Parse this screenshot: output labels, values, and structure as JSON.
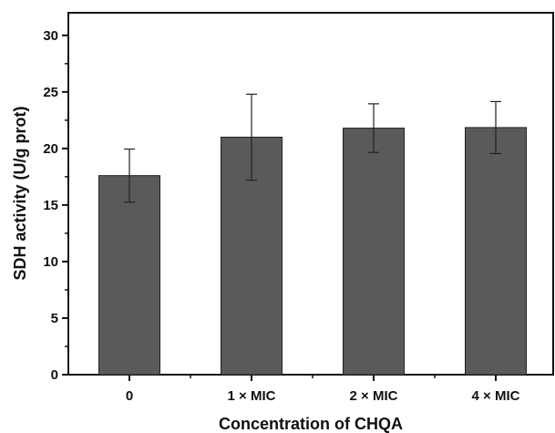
{
  "chart_data": {
    "type": "bar",
    "title": "",
    "xlabel": "Concentration of CHQA",
    "ylabel": "SDH activity (U/g prot)",
    "categories": [
      "0",
      "1 × MIC",
      "2 × MIC",
      "4 × MIC"
    ],
    "values": [
      17.6,
      21.0,
      21.8,
      21.85
    ],
    "errors": [
      2.35,
      3.8,
      2.15,
      2.3
    ],
    "ylim": [
      0,
      32
    ],
    "yticks": [
      "0",
      "5",
      "10",
      "15",
      "20",
      "25",
      "30"
    ],
    "grid": false,
    "legend": "none",
    "bar_color": "#5a5a5a",
    "axis_color": "#111111"
  }
}
